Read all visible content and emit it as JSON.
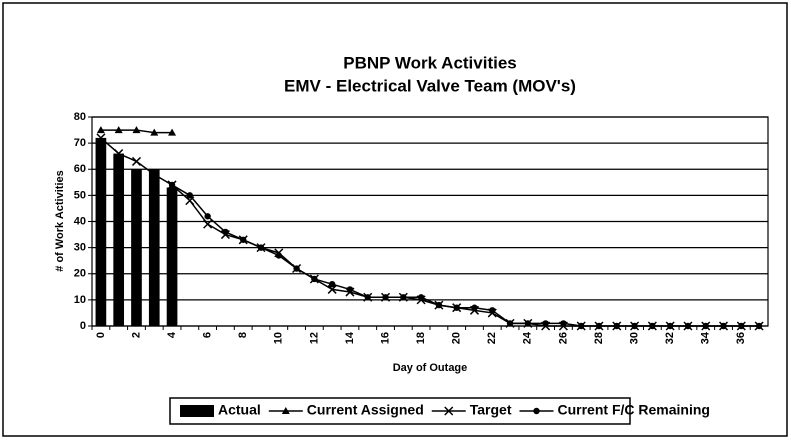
{
  "chart_data": {
    "type": "bar",
    "title": "PBNP Work Activities",
    "subtitle": "EMV - Electrical Valve Team (MOV's)",
    "x_label": "Day of Outage",
    "y_label": "# of Work Activities",
    "categories": [
      "0",
      null,
      "2",
      null,
      "4",
      null,
      "6",
      null,
      "8",
      null,
      "10",
      null,
      "12",
      null,
      "14",
      null,
      "16",
      null,
      "18",
      null,
      "20",
      null,
      "22",
      null,
      "24",
      null,
      "26",
      null,
      "28",
      null,
      "30",
      null,
      "32",
      null,
      "34",
      null,
      "36",
      null
    ],
    "ylim": [
      0,
      80
    ],
    "yticks": [
      0,
      10,
      20,
      30,
      40,
      50,
      60,
      70,
      80
    ],
    "grid": true,
    "legend": "bottom",
    "series": [
      {
        "name": "Actual",
        "type": "bar",
        "color": "#000000",
        "values": [
          72,
          66,
          60,
          60,
          53,
          null,
          null,
          null,
          null,
          null,
          null,
          null,
          null,
          null,
          null,
          null,
          null,
          null,
          null,
          null,
          null,
          null,
          null,
          null,
          null,
          null,
          null,
          null,
          null,
          null,
          null,
          null,
          null,
          null,
          null,
          null,
          null,
          null
        ]
      },
      {
        "name": "Current Assigned",
        "type": "line",
        "marker": "triangle",
        "color": "#000000",
        "values": [
          75,
          75,
          75,
          74,
          74,
          null,
          null,
          null,
          null,
          null,
          null,
          null,
          null,
          null,
          null,
          null,
          null,
          null,
          null,
          null,
          null,
          null,
          null,
          null,
          null,
          null,
          null,
          null,
          null,
          null,
          null,
          null,
          null,
          null,
          null,
          null,
          null,
          null
        ]
      },
      {
        "name": "Target",
        "type": "line",
        "marker": "x",
        "color": "#000000",
        "values": [
          72,
          66,
          63,
          58,
          54,
          48,
          39,
          35,
          33,
          30,
          28,
          22,
          18,
          14,
          13,
          11,
          11,
          11,
          10,
          8,
          7,
          6,
          5,
          1,
          1,
          0,
          0,
          0,
          0,
          0,
          0,
          0,
          0,
          0,
          0,
          0,
          0,
          0
        ]
      },
      {
        "name": "Current F/C Remaining",
        "type": "line",
        "marker": "circle",
        "color": "#000000",
        "values": [
          null,
          null,
          null,
          null,
          54,
          50,
          42,
          36,
          33,
          30,
          27,
          22,
          18,
          16,
          14,
          11,
          11,
          11,
          11,
          8,
          7,
          7,
          6,
          1,
          1,
          1,
          1,
          0,
          0,
          0,
          0,
          0,
          0,
          0,
          0,
          0,
          0,
          0
        ]
      }
    ]
  }
}
